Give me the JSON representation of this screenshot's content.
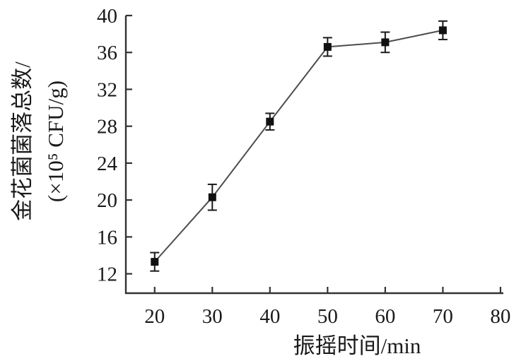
{
  "chart_data": {
    "type": "line",
    "title": "",
    "xlabel": "振摇时间/min",
    "ylabel_line1": "金花菌菌落总数/",
    "ylabel_line2": "(×10⁵ CFU/g)",
    "x": [
      20,
      30,
      40,
      50,
      60,
      70
    ],
    "series": [
      {
        "name": "金花菌菌落总数",
        "values": [
          13.3,
          20.3,
          28.5,
          36.6,
          37.1,
          38.4
        ],
        "errors": [
          1.0,
          1.4,
          0.9,
          1.0,
          1.1,
          1.0
        ]
      }
    ],
    "xlim": [
      15,
      80.5
    ],
    "ylim": [
      9.9,
      40
    ],
    "xticks": [
      20,
      30,
      40,
      50,
      60,
      70,
      80
    ],
    "yticks": [
      12,
      16,
      20,
      24,
      28,
      32,
      36,
      40
    ],
    "grid": false,
    "legend": "none",
    "marker": "filled-square",
    "error_bars": "vertical-with-caps",
    "colors": {
      "line": "#4d4d4d",
      "marker": "#111111",
      "error_bar": "#1a1a1a",
      "axis": "#333333",
      "text": "#1a1a1a",
      "background": "#ffffff"
    }
  }
}
